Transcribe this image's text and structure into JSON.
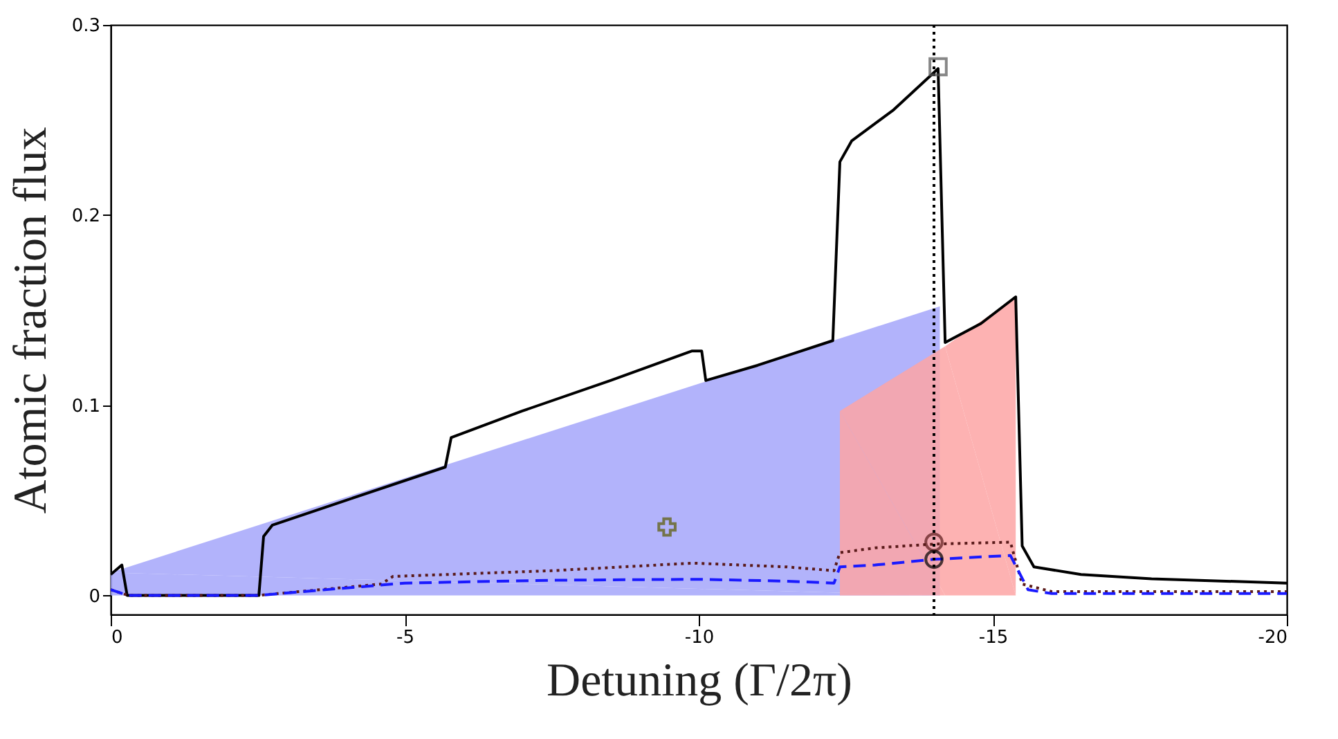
{
  "chart_data": {
    "type": "line",
    "xlabel": "Detuning (Γ/2π)",
    "ylabel": "Atomic fraction flux",
    "xlim": [
      0,
      -20
    ],
    "xticks": [
      0,
      -5,
      -10,
      -15,
      -20
    ],
    "ylim": [
      -0.01,
      0.3
    ],
    "yticks": [
      0,
      0.1,
      0.2,
      0.3
    ],
    "grid": false,
    "series": [
      {
        "type": "area",
        "color": "#a4a6fa",
        "x": [
          0,
          -14.1
        ],
        "values": [
          0.012,
          0.152
        ]
      },
      {
        "type": "area",
        "color": "#fda4a4",
        "x": [
          -12.4,
          -14.19,
          -15.39
        ],
        "values": [
          0.097,
          0.131,
          0.157
        ]
      },
      {
        "color": "#000000",
        "line_style": "solid",
        "marker": "none",
        "x": [
          0,
          -0.19,
          -0.28,
          -2.52,
          -2.6,
          -2.75,
          -4.0,
          -5.69,
          -5.79,
          -7.0,
          -8.5,
          -9.88,
          -10.05,
          -10.12,
          -11.0,
          -12.28,
          -12.4,
          -12.6,
          -13.3,
          -14.07,
          -14.19,
          -14.8,
          -15.39,
          -15.5,
          -15.7,
          -16.5,
          -17.7,
          -20
        ],
        "values": [
          0.011,
          0.016,
          0,
          0,
          0.031,
          0.037,
          0.05,
          0.0675,
          0.083,
          0.097,
          0.113,
          0.1285,
          0.1285,
          0.113,
          0.121,
          0.134,
          0.228,
          0.239,
          0.255,
          0.277,
          0.133,
          0.143,
          0.157,
          0.026,
          0.015,
          0.011,
          0.0087,
          0.0065
        ]
      },
      {
        "color": "#5a1a1a",
        "line_style": "dotted",
        "marker": "none",
        "x": [
          0,
          -0.3,
          -2.5,
          -4.6,
          -4.8,
          -7.5,
          -9.9,
          -11.5,
          -12.3,
          -12.4,
          -13.0,
          -14.0,
          -15.3,
          -15.5,
          -16.0,
          -20
        ],
        "values": [
          0.003,
          0,
          0,
          0.006,
          0.01,
          0.013,
          0.017,
          0.015,
          0.013,
          0.0225,
          0.025,
          0.027,
          0.028,
          0.006,
          0.002,
          0.002
        ]
      },
      {
        "color": "#1a1aff",
        "line_style": "dashed",
        "marker": "none",
        "x": [
          0,
          -0.3,
          -2.5,
          -5.0,
          -7.5,
          -10.0,
          -11.5,
          -12.3,
          -12.4,
          -13.0,
          -14.0,
          -15.3,
          -15.6,
          -16.0,
          -20
        ],
        "values": [
          0.003,
          0,
          0,
          0.0065,
          0.008,
          0.0085,
          0.0075,
          0.0065,
          0.015,
          0.016,
          0.019,
          0.021,
          0.003,
          0.001,
          0.001
        ]
      },
      {
        "type": "scatter",
        "color": "#555555",
        "marker": "square",
        "x": [
          -14.07
        ],
        "values": [
          0.278
        ]
      },
      {
        "type": "scatter",
        "color": "#5a1a1a",
        "marker": "circle",
        "x": [
          -14.0
        ],
        "values": [
          0.028
        ]
      },
      {
        "type": "scatter",
        "color": "#000000",
        "marker": "circle",
        "x": [
          -14.0
        ],
        "values": [
          0.019
        ]
      },
      {
        "type": "scatter",
        "color": "#5a5a00",
        "marker": "cross",
        "x": [
          -9.46
        ],
        "values": [
          0.036
        ]
      }
    ],
    "ref_lines": [
      {
        "axis": "x",
        "value": -14.0,
        "color": "#000000",
        "line_style": "dotted"
      }
    ]
  }
}
